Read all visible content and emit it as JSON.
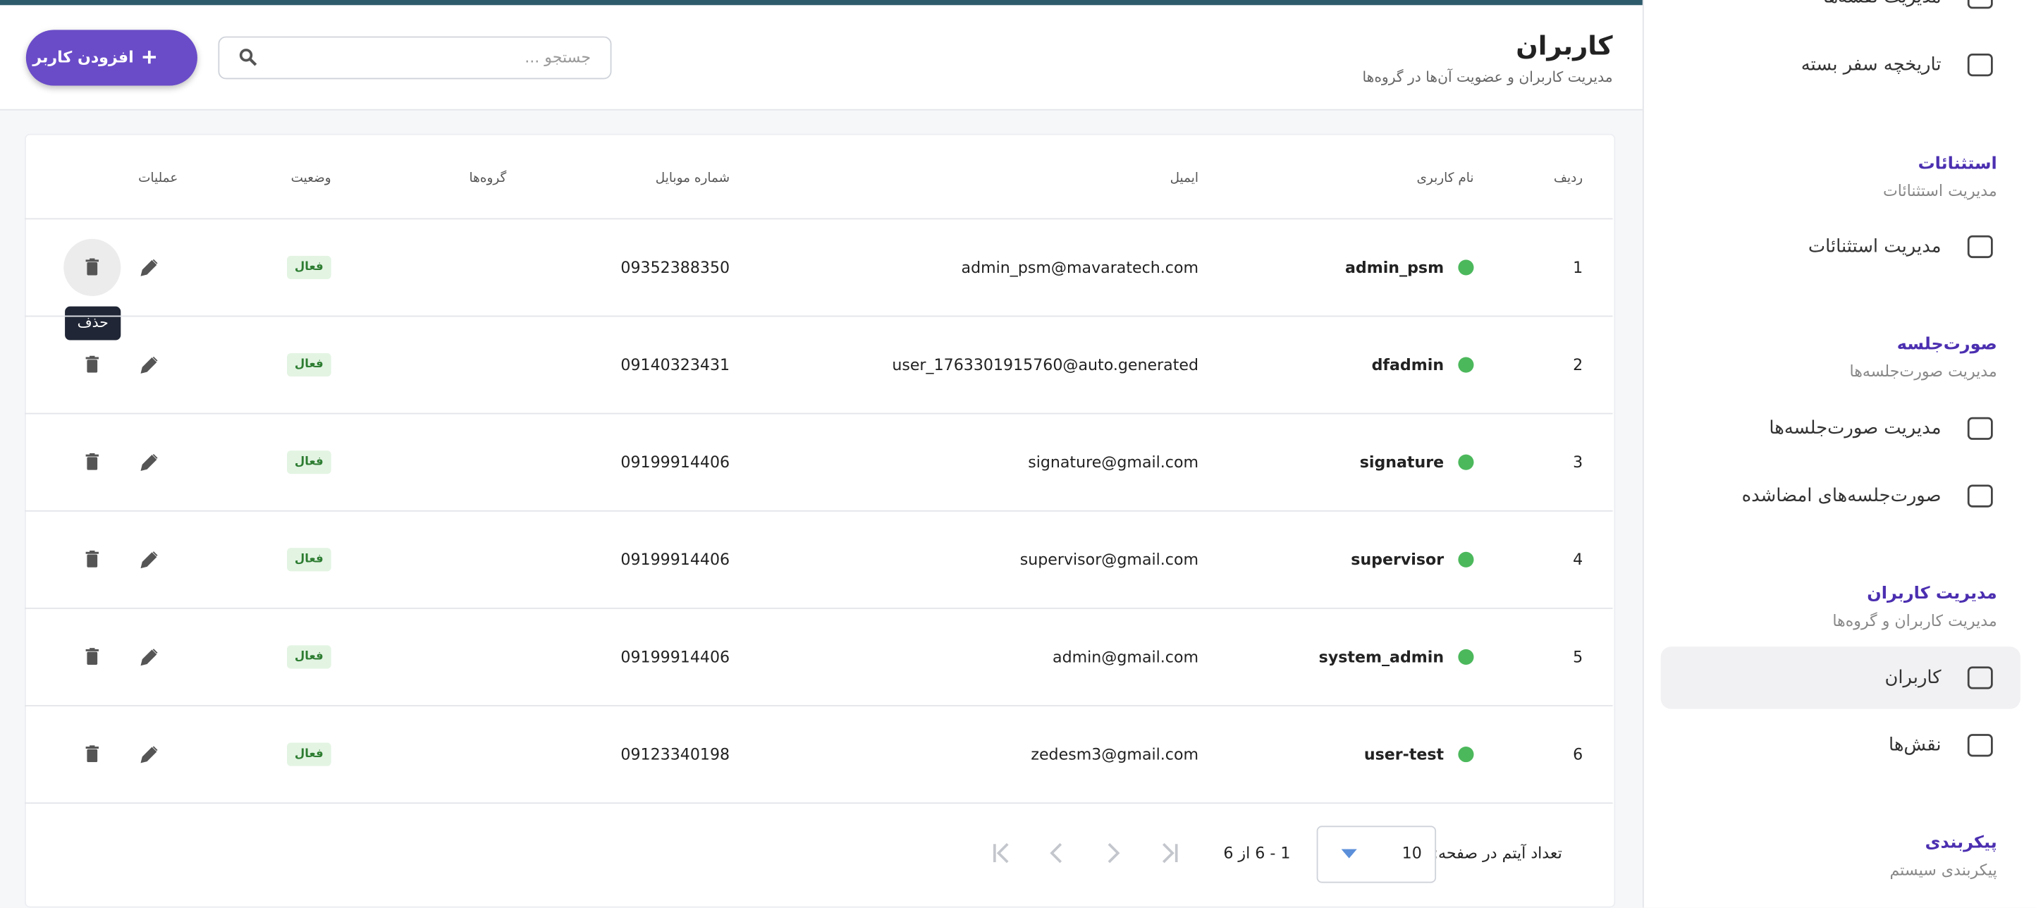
{
  "header": {
    "title": "کاربران",
    "subtitle": "مدیریت کاربران و عضویت آن‌ها در گروه‌ها",
    "search_placeholder": "جستجو ...",
    "add_button": "افزودن کاربر"
  },
  "table": {
    "columns": [
      "ردیف",
      "نام کاربری",
      "ایمیل",
      "شماره موبایل",
      "گروه‌ها",
      "وضعیت",
      "عملیات"
    ],
    "rows": [
      {
        "index": "1",
        "username": "admin_psm",
        "email": "admin_psm@mavaratech.com",
        "mobile": "09352388350",
        "status": "فعال"
      },
      {
        "index": "2",
        "username": "dfadmin",
        "email": "user_1763301915760@auto.generated",
        "mobile": "09140323431",
        "status": "فعال"
      },
      {
        "index": "3",
        "username": "signature",
        "email": "signature@gmail.com",
        "mobile": "09199914406",
        "status": "فعال"
      },
      {
        "index": "4",
        "username": "supervisor",
        "email": "supervisor@gmail.com",
        "mobile": "09199914406",
        "status": "فعال"
      },
      {
        "index": "5",
        "username": "system_admin",
        "email": "admin@gmail.com",
        "mobile": "09199914406",
        "status": "فعال"
      },
      {
        "index": "6",
        "username": "user-test",
        "email": "zedesm3@gmail.com",
        "mobile": "09123340198",
        "status": "فعال"
      }
    ]
  },
  "tooltip": "حذف",
  "pagination": {
    "items_per_page_label": "تعداد آیتم در صفحه:",
    "page_size": "10",
    "range": "1 - 6 از 6"
  },
  "sidebar": {
    "top_items": [
      "مدیریت نقشه‌ها",
      "تاریخچه سفر بسته"
    ],
    "sections": [
      {
        "title": "استثنائات",
        "subtitle": "مدیریت استثنائات",
        "items": [
          "مدیریت استثنائات"
        ]
      },
      {
        "title": "صورت‌جلسه",
        "subtitle": "مدیریت صورت‌جلسه‌ها",
        "items": [
          "مدیریت صورت‌جلسه‌ها",
          "صورت‌جلسه‌های امضاشده"
        ]
      },
      {
        "title": "مدیریت کاربران",
        "subtitle": "مدیریت کاربران و گروه‌ها",
        "items": [
          "کاربران",
          "نقش‌ها"
        ]
      },
      {
        "title": "پیکربندی",
        "subtitle": "پیکربندی سیستم",
        "items": []
      }
    ]
  }
}
